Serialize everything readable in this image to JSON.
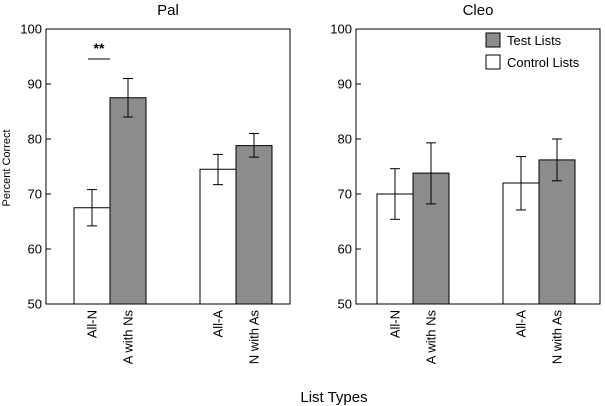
{
  "chart_data": [
    {
      "type": "bar",
      "title": "Pal",
      "ylabel": "Percent Correct",
      "xlabel": "List Types",
      "ylim": [
        50,
        100
      ],
      "yticks": [
        "50",
        "60",
        "70",
        "80",
        "90",
        "100"
      ],
      "groups": [
        {
          "bars": [
            {
              "label": "All-N",
              "series": "Control Lists",
              "value": 67.5,
              "err_low": 64.2,
              "err_high": 70.8
            },
            {
              "label": "A with Ns",
              "series": "Test Lists",
              "value": 87.5,
              "err_low": 84.0,
              "err_high": 91.0
            }
          ]
        },
        {
          "bars": [
            {
              "label": "All-A",
              "series": "Control Lists",
              "value": 74.5,
              "err_low": 71.7,
              "err_high": 77.2
            },
            {
              "label": "N with As",
              "series": "Test Lists",
              "value": 78.8,
              "err_low": 76.7,
              "err_high": 81.0
            }
          ]
        }
      ],
      "annotations": [
        {
          "text": "**",
          "between": [
            "All-N",
            "A with Ns"
          ]
        }
      ]
    },
    {
      "type": "bar",
      "title": "Cleo",
      "ylim": [
        50,
        100
      ],
      "yticks": [
        "50",
        "60",
        "70",
        "80",
        "90",
        "100"
      ],
      "groups": [
        {
          "bars": [
            {
              "label": "All-N",
              "series": "Control Lists",
              "value": 70.0,
              "err_low": 65.4,
              "err_high": 74.6
            },
            {
              "label": "A with Ns",
              "series": "Test Lists",
              "value": 73.8,
              "err_low": 68.2,
              "err_high": 79.3
            }
          ]
        },
        {
          "bars": [
            {
              "label": "All-A",
              "series": "Control Lists",
              "value": 72.0,
              "err_low": 67.1,
              "err_high": 76.8
            },
            {
              "label": "N with As",
              "series": "Test Lists",
              "value": 76.2,
              "err_low": 72.4,
              "err_high": 80.0
            }
          ]
        }
      ],
      "legend": {
        "placement": "top-right",
        "items": [
          {
            "name": "Test Lists",
            "color": "#8c8c8c"
          },
          {
            "name": "Control Lists",
            "color": "#ffffff"
          }
        ]
      }
    }
  ],
  "colors": {
    "Test Lists": "#8c8c8c",
    "Control Lists": "#ffffff",
    "stroke": "#000000"
  }
}
